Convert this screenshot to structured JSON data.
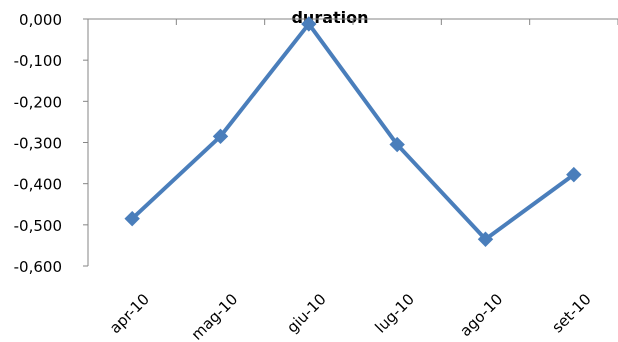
{
  "chart_data": {
    "type": "line",
    "title_partial": "duration",
    "categories": [
      "apr-10",
      "mag-10",
      "giu-10",
      "lug-10",
      "ago-10",
      "set-10"
    ],
    "series": [
      {
        "values": [
          -0.485,
          -0.285,
          -0.012,
          -0.305,
          -0.535,
          -0.378
        ]
      }
    ],
    "ylim": [
      -0.6,
      0.0
    ],
    "yticks": [
      "0,000",
      "-0,100",
      "-0,200",
      "-0,300",
      "-0,400",
      "-0,500",
      "-0,600"
    ],
    "grid": false,
    "legend": "none",
    "line_color": "#4a7ebb",
    "marker": "diamond"
  }
}
